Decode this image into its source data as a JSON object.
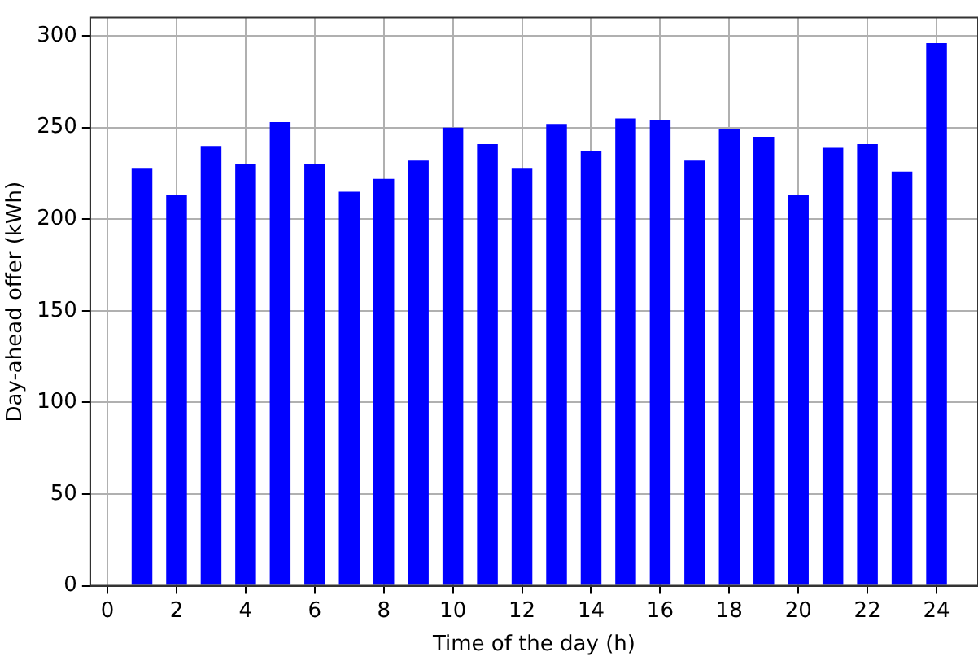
{
  "chart_data": {
    "type": "bar",
    "xlabel": "Time of the day (h)",
    "ylabel": "Day-ahead offer (kWh)",
    "x": [
      1,
      2,
      3,
      4,
      5,
      6,
      7,
      8,
      9,
      10,
      11,
      12,
      13,
      14,
      15,
      16,
      17,
      18,
      19,
      20,
      21,
      22,
      23,
      24
    ],
    "values": [
      228,
      213,
      240,
      230,
      253,
      230,
      215,
      222,
      232,
      250,
      241,
      228,
      252,
      237,
      255,
      254,
      232,
      249,
      245,
      213,
      239,
      241,
      226,
      296
    ],
    "color": "#0000ff",
    "xlim": [
      -0.5,
      25.2
    ],
    "xticks": [
      0,
      2,
      4,
      6,
      8,
      10,
      12,
      14,
      16,
      18,
      20,
      22,
      24
    ],
    "ylim": [
      0,
      310
    ],
    "yticks": [
      0,
      50,
      100,
      150,
      200,
      250,
      300
    ],
    "grid": true,
    "legend": false
  }
}
